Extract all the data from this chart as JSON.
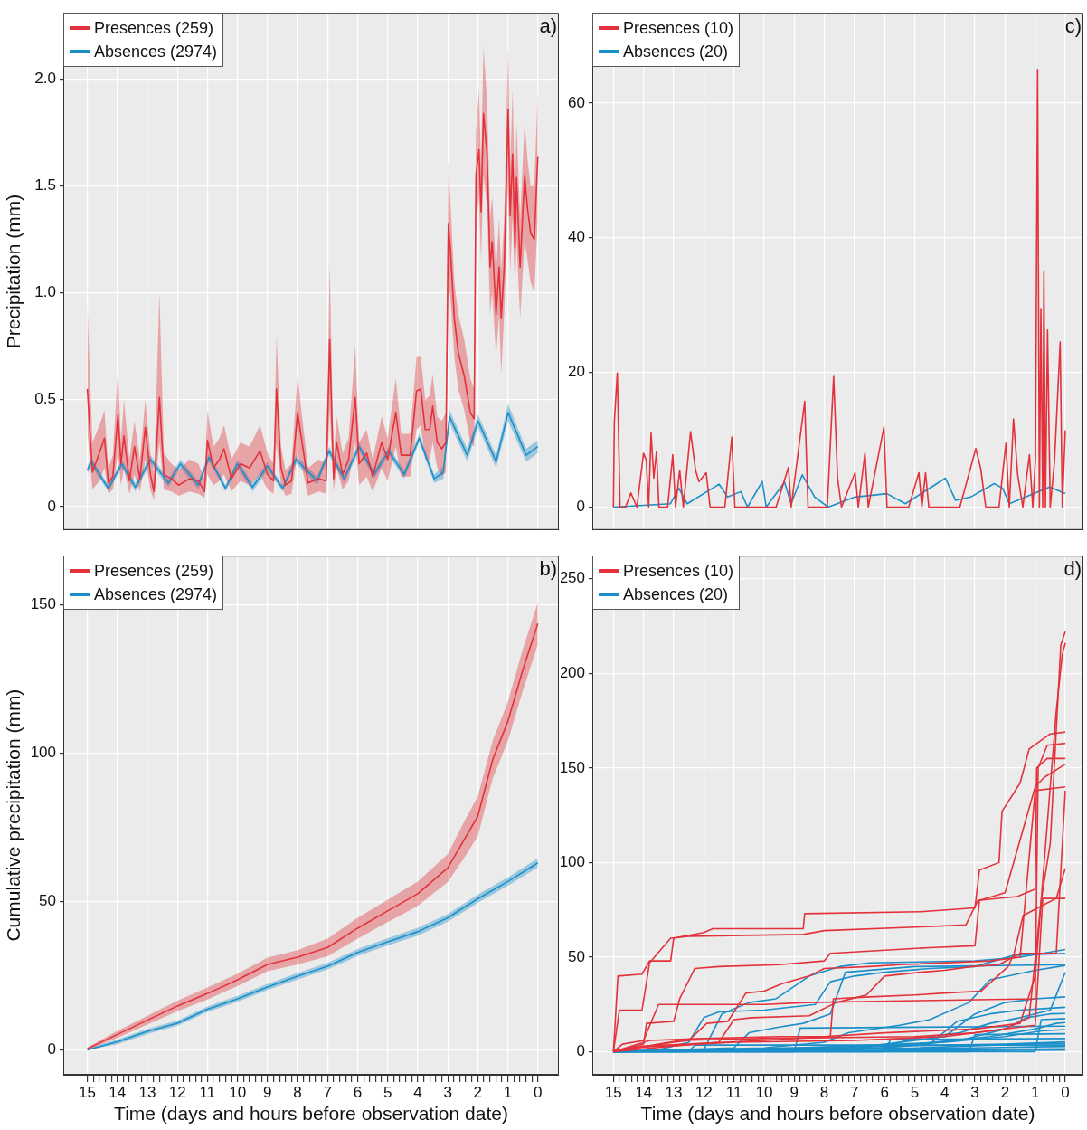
{
  "chart_data": [
    {
      "type": "line",
      "ylabel": "Precipitation (mm)",
      "annotations": [
        "a)"
      ],
      "legend": "top left",
      "grid": true,
      "tick_labels": "y",
      "xlim": [
        15.8,
        -0.7
      ],
      "xticks": [
        15,
        14,
        13,
        12,
        11,
        10,
        9,
        8,
        7,
        6,
        5,
        4,
        3,
        2,
        1,
        0
      ],
      "ylim": [
        -0.11,
        2.31
      ],
      "yticks": [
        0,
        0.5,
        {
          "value": 1,
          "label": "1.0"
        },
        1.5,
        {
          "value": 2,
          "label": "2.0"
        }
      ],
      "series": [
        {
          "name": "Presences (259)",
          "color": "#e3323b",
          "x": [
            15,
            14.83,
            14.6,
            14.43,
            14.3,
            14.15,
            13.98,
            13.88,
            13.78,
            13.6,
            13.43,
            13.25,
            13.07,
            12.9,
            12.78,
            12.6,
            12.45,
            12.2,
            11.96,
            11.6,
            11.3,
            11.1,
            11.0,
            10.8,
            10.6,
            10.45,
            10.2,
            9.9,
            9.6,
            9.25,
            9.0,
            8.8,
            8.7,
            8.55,
            8.4,
            8.2,
            8.0,
            7.85,
            7.65,
            7.3,
            7.05,
            6.93,
            6.8,
            6.7,
            6.5,
            6.3,
            6.08,
            5.95,
            5.7,
            5.5,
            5.2,
            5.0,
            4.73,
            4.55,
            4.25,
            4.04,
            3.9,
            3.75,
            3.6,
            3.5,
            3.35,
            3.2,
            3.06,
            2.98,
            2.92,
            2.78,
            2.65,
            2.45,
            2.25,
            2.12,
            2.06,
            1.96,
            1.89,
            1.81,
            1.69,
            1.59,
            1.52,
            1.39,
            1.29,
            1.22,
            1.12,
            0.99,
            0.92,
            0.84,
            0.76,
            0.71,
            0.59,
            0.44,
            0.34,
            0.24,
            0.12,
            0
          ],
          "values": [
            0.55,
            0.16,
            0.25,
            0.32,
            0.11,
            0.14,
            0.43,
            0.2,
            0.33,
            0.12,
            0.28,
            0.13,
            0.37,
            0.15,
            0.07,
            0.51,
            0.15,
            0.13,
            0.1,
            0.13,
            0.12,
            0.07,
            0.31,
            0.18,
            0.22,
            0.27,
            0.13,
            0.2,
            0.18,
            0.26,
            0.15,
            0.12,
            0.55,
            0.18,
            0.1,
            0.12,
            0.44,
            0.3,
            0.11,
            0.13,
            0.12,
            0.78,
            0.13,
            0.3,
            0.15,
            0.22,
            0.51,
            0.2,
            0.25,
            0.14,
            0.3,
            0.22,
            0.44,
            0.24,
            0.24,
            0.54,
            0.55,
            0.36,
            0.36,
            0.47,
            0.3,
            0.27,
            0.3,
            1.32,
            1.22,
            0.88,
            0.72,
            0.61,
            0.44,
            0.41,
            1.55,
            1.67,
            1.38,
            1.84,
            1.65,
            1.12,
            1.24,
            0.9,
            1.12,
            0.88,
            1.12,
            1.86,
            1.36,
            1.65,
            1.21,
            1.54,
            1.12,
            1.55,
            1.39,
            1.28,
            1.25,
            1.64
          ],
          "lower": [
            0.35,
            0.08,
            0.12,
            0.18,
            0.06,
            0.08,
            0.25,
            0.1,
            0.18,
            0.06,
            0.15,
            0.07,
            0.22,
            0.08,
            0.03,
            0.3,
            0.08,
            0.07,
            0.05,
            0.07,
            0.06,
            0.04,
            0.15,
            0.1,
            0.12,
            0.15,
            0.07,
            0.12,
            0.1,
            0.15,
            0.08,
            0.06,
            0.3,
            0.1,
            0.05,
            0.06,
            0.25,
            0.18,
            0.05,
            0.07,
            0.06,
            0.45,
            0.07,
            0.18,
            0.08,
            0.12,
            0.3,
            0.1,
            0.14,
            0.07,
            0.18,
            0.12,
            0.28,
            0.14,
            0.14,
            0.36,
            0.38,
            0.22,
            0.22,
            0.3,
            0.18,
            0.14,
            0.16,
            0.98,
            1.0,
            0.7,
            0.55,
            0.45,
            0.3,
            0.28,
            1.3,
            1.45,
            1.15,
            1.55,
            1.4,
            0.9,
            1.0,
            0.7,
            0.9,
            0.62,
            0.9,
            1.5,
            1.1,
            1.35,
            1.0,
            1.25,
            0.88,
            1.25,
            1.15,
            1.05,
            1.0,
            1.35
          ],
          "upper": [
            0.95,
            0.3,
            0.38,
            0.45,
            0.18,
            0.24,
            0.65,
            0.3,
            0.5,
            0.22,
            0.4,
            0.22,
            0.5,
            0.25,
            0.15,
            1.0,
            0.25,
            0.2,
            0.17,
            0.22,
            0.2,
            0.13,
            0.45,
            0.28,
            0.32,
            0.38,
            0.22,
            0.3,
            0.28,
            0.38,
            0.25,
            0.2,
            0.8,
            0.28,
            0.17,
            0.2,
            0.62,
            0.42,
            0.18,
            0.22,
            0.2,
            1.13,
            0.22,
            0.42,
            0.25,
            0.32,
            0.75,
            0.3,
            0.36,
            0.22,
            0.42,
            0.32,
            0.6,
            0.34,
            0.34,
            0.7,
            0.7,
            0.5,
            0.52,
            0.62,
            0.42,
            0.4,
            0.44,
            1.62,
            1.45,
            1.05,
            0.9,
            0.78,
            0.6,
            0.55,
            1.75,
            1.95,
            1.6,
            2.15,
            1.9,
            1.35,
            1.45,
            1.1,
            1.35,
            1.1,
            1.35,
            2.15,
            1.6,
            1.95,
            1.45,
            1.8,
            1.35,
            1.8,
            1.62,
            1.5,
            1.5,
            1.95
          ]
        },
        {
          "name": "Absences (2974)",
          "color": "#1b8fca",
          "x": [
            15,
            14.87,
            14.3,
            13.85,
            13.4,
            12.9,
            12.3,
            11.9,
            11.3,
            10.95,
            10.4,
            10.0,
            9.5,
            9.0,
            8.5,
            8.05,
            7.35,
            6.95,
            6.45,
            5.95,
            5.45,
            4.97,
            4.45,
            3.95,
            3.45,
            3.15,
            2.94,
            2.35,
            1.99,
            1.39,
            0.99,
            0.39,
            0
          ],
          "values": [
            0.17,
            0.21,
            0.085,
            0.2,
            0.09,
            0.22,
            0.11,
            0.2,
            0.1,
            0.23,
            0.085,
            0.2,
            0.09,
            0.19,
            0.085,
            0.22,
            0.12,
            0.26,
            0.13,
            0.28,
            0.15,
            0.26,
            0.15,
            0.32,
            0.13,
            0.16,
            0.42,
            0.24,
            0.4,
            0.21,
            0.44,
            0.24,
            0.28
          ],
          "lower": [
            0.15,
            0.19,
            0.07,
            0.18,
            0.07,
            0.2,
            0.09,
            0.18,
            0.08,
            0.21,
            0.07,
            0.18,
            0.07,
            0.17,
            0.07,
            0.2,
            0.1,
            0.24,
            0.11,
            0.26,
            0.13,
            0.24,
            0.13,
            0.3,
            0.11,
            0.13,
            0.39,
            0.21,
            0.37,
            0.18,
            0.4,
            0.21,
            0.25
          ],
          "upper": [
            0.19,
            0.23,
            0.1,
            0.22,
            0.11,
            0.24,
            0.13,
            0.22,
            0.12,
            0.25,
            0.1,
            0.22,
            0.11,
            0.21,
            0.1,
            0.24,
            0.14,
            0.28,
            0.15,
            0.3,
            0.17,
            0.28,
            0.17,
            0.34,
            0.15,
            0.19,
            0.45,
            0.27,
            0.43,
            0.24,
            0.48,
            0.27,
            0.31
          ]
        }
      ]
    },
    {
      "type": "line",
      "annotations": [
        "c)"
      ],
      "legend": "top left",
      "grid": true,
      "tick_labels": "y",
      "xlim": [
        15.7,
        -0.6
      ],
      "xticks": [
        15,
        14,
        13,
        12,
        11,
        10,
        9,
        8,
        7,
        6,
        5,
        4,
        3,
        2,
        1,
        0
      ],
      "ylim": [
        -3.4,
        73.4
      ],
      "yticks": [
        0,
        20,
        40,
        60
      ],
      "series": [
        {
          "name": "Presences (10)",
          "color": "#e3323b",
          "x": [
            15,
            14.97,
            14.87,
            14.78,
            14.6,
            14.42,
            14.22,
            14.0,
            13.91,
            13.83,
            13.75,
            13.66,
            13.57,
            13.49,
            13.2,
            13.03,
            12.94,
            12.8,
            12.68,
            12.44,
            12.27,
            12.16,
            11.92,
            11.79,
            11.3,
            11.07,
            10.97,
            9.6,
            9.19,
            9.1,
            8.65,
            8.54,
            7.9,
            7.69,
            7.56,
            7.43,
            6.98,
            6.87,
            6.65,
            6.54,
            6.02,
            5.92,
            5.2,
            4.86,
            4.76,
            4.64,
            4.53,
            3.5,
            2.97,
            2.81,
            2.64,
            2.2,
            1.97,
            1.86,
            1.72,
            1.58,
            1.41,
            1.19,
            1.08,
            0.99,
            0.92,
            0.86,
            0.81,
            0.75,
            0.71,
            0.66,
            0.59,
            0.5,
            0.36,
            0.17,
            0.1,
            0
          ],
          "values": [
            0,
            12.6,
            19.9,
            0,
            0,
            2.1,
            0,
            8,
            7,
            0,
            11,
            4.3,
            8.3,
            0,
            0,
            7.8,
            0,
            5.5,
            0,
            11.2,
            5.4,
            3.8,
            5.1,
            0,
            0,
            10.4,
            0,
            0,
            5.9,
            0,
            15.7,
            0,
            0,
            19.4,
            4.3,
            0,
            5.1,
            0,
            8,
            0,
            11.9,
            0,
            0,
            5.1,
            0,
            5.1,
            0,
            0,
            8.7,
            5.8,
            0,
            0,
            9.5,
            0,
            13.1,
            4.8,
            0,
            7.8,
            0,
            7.2,
            65,
            0,
            29.5,
            0,
            35.1,
            0,
            26.3,
            0,
            6.7,
            24.5,
            0,
            11.4
          ]
        },
        {
          "name": "Absences (20)",
          "color": "#1b8fca",
          "x": [
            15,
            13.11,
            12.83,
            12.55,
            11.49,
            11.21,
            10.77,
            10.55,
            10.06,
            9.93,
            9.32,
            9.1,
            8.73,
            8.32,
            7.87,
            6.98,
            5.92,
            5.31,
            3.98,
            3.64,
            3.14,
            2.36,
            2.08,
            1.86,
            0.52,
            0
          ],
          "values": [
            0,
            0.5,
            2.8,
            0.5,
            3.4,
            1.5,
            2.3,
            0,
            3.8,
            0,
            3.7,
            0.5,
            4.8,
            1.5,
            0,
            1.5,
            2,
            0.5,
            4.3,
            1,
            1.5,
            3.5,
            2.8,
            0.5,
            3,
            2
          ]
        }
      ]
    },
    {
      "type": "line",
      "ylabel": "Cumulative precipitation (mm)",
      "xlabel": "Time (days and hours before observation date)",
      "annotations": [
        "b)"
      ],
      "legend": "top left",
      "grid": true,
      "xlim": [
        15.8,
        -0.7
      ],
      "xticks": [
        15,
        {
          "value": 14.8,
          "label": null
        },
        {
          "value": 14.6,
          "label": null
        },
        {
          "value": 14.4,
          "label": null
        },
        {
          "value": 14.2,
          "label": null
        },
        14,
        {
          "value": 13.8,
          "label": null
        },
        {
          "value": 13.6,
          "label": null
        },
        {
          "value": 13.4,
          "label": null
        },
        {
          "value": 13.2,
          "label": null
        },
        13,
        {
          "value": 12.8,
          "label": null
        },
        {
          "value": 12.6,
          "label": null
        },
        {
          "value": 12.4,
          "label": null
        },
        {
          "value": 12.2,
          "label": null
        },
        12,
        {
          "value": 11.8,
          "label": null
        },
        {
          "value": 11.6,
          "label": null
        },
        {
          "value": 11.4,
          "label": null
        },
        {
          "value": 11.2,
          "label": null
        },
        11,
        {
          "value": 10.8,
          "label": null
        },
        {
          "value": 10.6,
          "label": null
        },
        {
          "value": 10.4,
          "label": null
        },
        {
          "value": 10.2,
          "label": null
        },
        10,
        {
          "value": 9.8,
          "label": null
        },
        {
          "value": 9.6,
          "label": null
        },
        {
          "value": 9.4,
          "label": null
        },
        {
          "value": 9.2,
          "label": null
        },
        9,
        {
          "value": 8.8,
          "label": null
        },
        {
          "value": 8.6,
          "label": null
        },
        {
          "value": 8.4,
          "label": null
        },
        {
          "value": 8.2,
          "label": null
        },
        8,
        {
          "value": 7.8,
          "label": null
        },
        {
          "value": 7.6,
          "label": null
        },
        {
          "value": 7.4,
          "label": null
        },
        {
          "value": 7.2,
          "label": null
        },
        7,
        {
          "value": 6.8,
          "label": null
        },
        {
          "value": 6.6,
          "label": null
        },
        {
          "value": 6.4,
          "label": null
        },
        {
          "value": 6.2,
          "label": null
        },
        6,
        {
          "value": 5.8,
          "label": null
        },
        {
          "value": 5.6,
          "label": null
        },
        {
          "value": 5.4,
          "label": null
        },
        {
          "value": 5.2,
          "label": null
        },
        5,
        {
          "value": 4.8,
          "label": null
        },
        {
          "value": 4.6,
          "label": null
        },
        {
          "value": 4.4,
          "label": null
        },
        {
          "value": 4.2,
          "label": null
        },
        4,
        {
          "value": 3.8,
          "label": null
        },
        {
          "value": 3.6,
          "label": null
        },
        {
          "value": 3.4,
          "label": null
        },
        {
          "value": 3.2,
          "label": null
        },
        3,
        {
          "value": 2.8,
          "label": null
        },
        {
          "value": 2.6,
          "label": null
        },
        {
          "value": 2.4,
          "label": null
        },
        {
          "value": 2.2,
          "label": null
        },
        2,
        {
          "value": 1.8,
          "label": null
        },
        {
          "value": 1.6,
          "label": null
        },
        {
          "value": 1.4,
          "label": null
        },
        {
          "value": 1.2,
          "label": null
        },
        1,
        {
          "value": 0.8,
          "label": null
        },
        {
          "value": 0.6,
          "label": null
        },
        {
          "value": 0.4,
          "label": null
        },
        {
          "value": 0.2,
          "label": null
        },
        0
      ],
      "ylim": [
        -8.4,
        166.5
      ],
      "yticks": [
        0,
        50,
        100,
        150
      ],
      "series": [
        {
          "name": "Presences (259)",
          "color": "#e3323b",
          "x": [
            15,
            14,
            13,
            12,
            11,
            10,
            9,
            8,
            7,
            6,
            5,
            4,
            3,
            2.5,
            2,
            1.5,
            1,
            0.5,
            0
          ],
          "values": [
            0.4,
            5.2,
            10,
            14.8,
            19,
            23.6,
            28.8,
            31.2,
            34.5,
            41,
            46.8,
            52.6,
            61.3,
            70,
            78.7,
            97.9,
            110.6,
            128,
            143.6
          ],
          "lower": [
            0,
            4,
            8.5,
            13,
            17,
            21.5,
            26.5,
            28.8,
            31.5,
            37.5,
            43,
            48.5,
            56.5,
            64,
            72,
            91.5,
            104,
            121,
            136.5
          ],
          "upper": [
            0.8,
            6.4,
            11.5,
            16.6,
            21,
            25.7,
            31.1,
            33.6,
            37.5,
            44.5,
            50.6,
            56.7,
            66,
            76,
            85.4,
            104.3,
            117.2,
            135,
            150.7
          ]
        },
        {
          "name": "Absences (2974)",
          "color": "#1b8fca",
          "x": [
            15,
            14,
            13,
            12,
            11,
            10,
            9,
            8,
            7,
            6,
            5,
            4,
            3,
            2,
            1,
            0
          ],
          "values": [
            0,
            2.7,
            6.2,
            9,
            13.7,
            17.2,
            21.2,
            24.8,
            28.2,
            32.8,
            36.4,
            39.8,
            44.5,
            50.9,
            56.7,
            63
          ],
          "lower": [
            0,
            1.9,
            5.3,
            8.1,
            12.8,
            16.2,
            20.2,
            23.7,
            27.1,
            31.6,
            35.2,
            38.5,
            43.2,
            49.5,
            55.3,
            61.5
          ],
          "upper": [
            0.5,
            3.5,
            7.1,
            9.9,
            14.6,
            18.2,
            22.2,
            25.9,
            29.3,
            34,
            37.6,
            41.1,
            45.8,
            52.3,
            58.1,
            64.5
          ]
        }
      ]
    },
    {
      "type": "line",
      "xlabel": "Time (days and hours before observation date)",
      "annotations": [
        "d)"
      ],
      "legend": "top left",
      "grid": true,
      "xlim": [
        15.7,
        -0.6
      ],
      "xticks": [
        15,
        {
          "value": 14.8,
          "label": null
        },
        {
          "value": 14.6,
          "label": null
        },
        {
          "value": 14.4,
          "label": null
        },
        {
          "value": 14.2,
          "label": null
        },
        14,
        {
          "value": 13.8,
          "label": null
        },
        {
          "value": 13.6,
          "label": null
        },
        {
          "value": 13.4,
          "label": null
        },
        {
          "value": 13.2,
          "label": null
        },
        13,
        {
          "value": 12.8,
          "label": null
        },
        {
          "value": 12.6,
          "label": null
        },
        {
          "value": 12.4,
          "label": null
        },
        {
          "value": 12.2,
          "label": null
        },
        12,
        {
          "value": 11.8,
          "label": null
        },
        {
          "value": 11.6,
          "label": null
        },
        {
          "value": 11.4,
          "label": null
        },
        {
          "value": 11.2,
          "label": null
        },
        11,
        {
          "value": 10.8,
          "label": null
        },
        {
          "value": 10.6,
          "label": null
        },
        {
          "value": 10.4,
          "label": null
        },
        {
          "value": 10.2,
          "label": null
        },
        10,
        {
          "value": 9.8,
          "label": null
        },
        {
          "value": 9.6,
          "label": null
        },
        {
          "value": 9.4,
          "label": null
        },
        {
          "value": 9.2,
          "label": null
        },
        9,
        {
          "value": 8.8,
          "label": null
        },
        {
          "value": 8.6,
          "label": null
        },
        {
          "value": 8.4,
          "label": null
        },
        {
          "value": 8.2,
          "label": null
        },
        8,
        {
          "value": 7.8,
          "label": null
        },
        {
          "value": 7.6,
          "label": null
        },
        {
          "value": 7.4,
          "label": null
        },
        {
          "value": 7.2,
          "label": null
        },
        7,
        {
          "value": 6.8,
          "label": null
        },
        {
          "value": 6.6,
          "label": null
        },
        {
          "value": 6.4,
          "label": null
        },
        {
          "value": 6.2,
          "label": null
        },
        6,
        {
          "value": 5.8,
          "label": null
        },
        {
          "value": 5.6,
          "label": null
        },
        {
          "value": 5.4,
          "label": null
        },
        {
          "value": 5.2,
          "label": null
        },
        5,
        {
          "value": 4.8,
          "label": null
        },
        {
          "value": 4.6,
          "label": null
        },
        {
          "value": 4.4,
          "label": null
        },
        {
          "value": 4.2,
          "label": null
        },
        4,
        {
          "value": 3.8,
          "label": null
        },
        {
          "value": 3.6,
          "label": null
        },
        {
          "value": 3.4,
          "label": null
        },
        {
          "value": 3.2,
          "label": null
        },
        3,
        {
          "value": 2.8,
          "label": null
        },
        {
          "value": 2.6,
          "label": null
        },
        {
          "value": 2.4,
          "label": null
        },
        {
          "value": 2.2,
          "label": null
        },
        2,
        {
          "value": 1.8,
          "label": null
        },
        {
          "value": 1.6,
          "label": null
        },
        {
          "value": 1.4,
          "label": null
        },
        {
          "value": 1.2,
          "label": null
        },
        1,
        {
          "value": 0.8,
          "label": null
        },
        {
          "value": 0.6,
          "label": null
        },
        {
          "value": 0.4,
          "label": null
        },
        {
          "value": 0.2,
          "label": null
        },
        0
      ],
      "ylim": [
        -12.2,
        262.2
      ],
      "yticks": [
        0,
        50,
        100,
        150,
        200,
        250
      ],
      "series": [
        {
          "name": "Presences (10)",
          "color": "#e3323b",
          "x": [
            15,
            14.85,
            14.05,
            13.8,
            13.1,
            13.0,
            12.0,
            11.7,
            8.7,
            8.65,
            4.8,
            3.0,
            2.85,
            2.2,
            2.1,
            1.5,
            1.2,
            0.5,
            0
          ],
          "values": [
            0,
            40,
            41,
            48,
            48,
            60,
            63,
            65,
            65,
            73,
            74,
            76,
            96,
            100,
            127,
            142,
            160,
            168,
            169
          ]
        },
        {
          "color": "#e3323b",
          "x": [
            15,
            14.8,
            14.05,
            13.8,
            13.1,
            12.5,
            8.7,
            8.0,
            4.8,
            3.3,
            2.9,
            1.6,
            1.0,
            0.95,
            0.6,
            0
          ],
          "values": [
            0,
            22,
            22,
            47,
            60,
            61,
            62,
            64,
            66,
            67,
            80,
            82,
            86,
            150,
            155,
            155
          ]
        },
        {
          "color": "#e3323b",
          "x": [
            15,
            14.7,
            14.0,
            13.5,
            10,
            8.6,
            4.9,
            1.0,
            0.9,
            0.6,
            0
          ],
          "values": [
            0,
            4,
            6,
            25,
            25,
            26,
            27,
            28,
            150,
            162,
            163
          ]
        },
        {
          "color": "#e3323b",
          "x": [
            15,
            14.0,
            13.9,
            13.0,
            12.8,
            12.3,
            11.5,
            9.5,
            8.0,
            7.8,
            4.5,
            3.0,
            2.85,
            2.0,
            1.0,
            0.7,
            0
          ],
          "values": [
            0,
            4,
            15,
            16,
            28,
            44,
            45,
            46,
            48,
            52,
            55,
            56,
            80,
            84,
            140,
            145,
            152
          ]
        },
        {
          "color": "#e3323b",
          "x": [
            15,
            13.0,
            12.5,
            11.9,
            11.2,
            10.6,
            10.0,
            9.4,
            8.5,
            8.0,
            6.5,
            5.5,
            2.5,
            1.5,
            1.0,
            0
          ],
          "values": [
            0,
            5,
            6,
            15,
            16,
            31,
            32,
            36,
            40,
            44,
            45,
            46,
            48,
            50,
            138,
            140
          ]
        },
        {
          "color": "#e3323b",
          "x": [
            15,
            13.8,
            12.0,
            9.5,
            7.8,
            7.7,
            6.5,
            5.0,
            4.0,
            2.8,
            1.9,
            1.7,
            1.4,
            0.8,
            0.3,
            0
          ],
          "values": [
            0,
            6,
            7,
            8,
            8,
            28,
            29,
            30,
            31,
            32,
            45,
            52,
            72,
            77,
            81,
            97
          ]
        },
        {
          "color": "#e3323b",
          "x": [
            15,
            13.0,
            11.5,
            11.0,
            10.4,
            8.5,
            7.6,
            6.6,
            6.0,
            4.8,
            4.0,
            3.1,
            2.2,
            1.5,
            0.3,
            0
          ],
          "values": [
            0,
            3,
            5,
            17,
            18,
            19,
            26,
            30,
            40,
            42,
            43,
            45,
            46,
            52,
            52,
            138
          ]
        },
        {
          "color": "#e3323b",
          "x": [
            15,
            12.8,
            10,
            5,
            3.0,
            1.0,
            0.75,
            0
          ],
          "values": [
            0,
            6,
            7,
            8,
            10,
            14,
            81,
            81
          ]
        },
        {
          "color": "#e3323b",
          "x": [
            15,
            14.5,
            11.0,
            7.0,
            4.0,
            2.0,
            1.2,
            0.8,
            0.5,
            0.3,
            0.15,
            0
          ],
          "values": [
            0,
            2,
            5,
            6,
            8,
            12,
            18,
            80,
            110,
            170,
            215,
            222
          ]
        },
        {
          "color": "#e3323b",
          "x": [
            15,
            14.0,
            10.0,
            6.0,
            3.0,
            1.5,
            1.0,
            0.6,
            0.3,
            0.1,
            0
          ],
          "values": [
            0,
            3,
            6,
            10,
            12,
            15,
            40,
            120,
            180,
            210,
            216
          ]
        },
        {
          "name": "Absences (20)",
          "color": "#1b8fca",
          "x": [
            15,
            12,
            11.4,
            10.5,
            9.6,
            8.5,
            7.5,
            6.5,
            3.0,
            1.5,
            0
          ],
          "values": [
            0,
            1,
            20,
            26,
            28,
            40,
            45,
            47,
            48,
            50,
            54
          ]
        },
        {
          "color": "#1b8fca",
          "x": [
            15,
            13.5,
            12.5,
            12.0,
            11.5,
            10.0,
            8.3,
            7.8,
            7.0,
            6.0,
            4.5,
            3.0,
            1.7,
            0
          ],
          "values": [
            0,
            1,
            5,
            18,
            21,
            22,
            25,
            37,
            40,
            42,
            44,
            45,
            51,
            52
          ]
        },
        {
          "color": "#1b8fca",
          "x": [
            15,
            11.0,
            10.5,
            9.5,
            8.7,
            7.8,
            7.3,
            5.0,
            0
          ],
          "values": [
            0,
            2,
            10,
            13,
            15,
            20,
            42,
            45,
            46
          ]
        },
        {
          "color": "#1b8fca",
          "x": [
            15,
            10.0,
            8.0,
            7.2,
            5.5,
            4.5,
            3.2,
            2.5,
            1.0,
            0
          ],
          "values": [
            0,
            2,
            5,
            10,
            14,
            17,
            26,
            38,
            43,
            45.6
          ]
        },
        {
          "color": "#1b8fca",
          "x": [
            15,
            8.0,
            6.0,
            5.0,
            3.5,
            2.5,
            1.5,
            0.5,
            0
          ],
          "values": [
            0,
            1,
            3,
            7,
            10,
            15,
            18,
            22,
            42
          ]
        },
        {
          "color": "#1b8fca",
          "x": [
            15,
            9,
            6.5,
            4.0,
            3.0,
            2.0,
            1.0,
            0
          ],
          "values": [
            0,
            1,
            3,
            8,
            20,
            26,
            28,
            29
          ]
        },
        {
          "color": "#1b8fca",
          "x": [
            15,
            7,
            4.5,
            3.6,
            2.5,
            1.5,
            0.5,
            0
          ],
          "values": [
            0,
            1,
            4,
            16,
            20,
            22,
            23,
            23.5
          ]
        },
        {
          "color": "#1b8fca",
          "x": [
            15,
            6,
            3.5,
            2.0,
            1.3,
            0.5,
            0
          ],
          "values": [
            0,
            2,
            6,
            12,
            18,
            20,
            20.2
          ]
        },
        {
          "color": "#1b8fca",
          "x": [
            15,
            8,
            5,
            2.5,
            1.0,
            0.3,
            0
          ],
          "values": [
            0,
            2,
            4,
            8,
            12,
            15,
            15.4
          ]
        },
        {
          "color": "#1b8fca",
          "x": [
            15,
            9,
            4,
            2,
            0.8,
            0
          ],
          "values": [
            0,
            2,
            5,
            8,
            11,
            11.7
          ]
        },
        {
          "color": "#1b8fca",
          "x": [
            15,
            12,
            6,
            2,
            0
          ],
          "values": [
            0,
            1,
            3,
            4,
            5.2
          ]
        },
        {
          "color": "#1b8fca",
          "x": [
            15,
            10,
            5,
            1.5,
            0
          ],
          "values": [
            0,
            1,
            2,
            4,
            4.4
          ]
        },
        {
          "color": "#1b8fca",
          "x": [
            15,
            10,
            3,
            0
          ],
          "values": [
            0,
            1,
            2,
            2.8
          ]
        },
        {
          "color": "#1b8fca",
          "x": [
            15,
            8,
            0
          ],
          "values": [
            0,
            0.5,
            1.5
          ]
        },
        {
          "color": "#1b8fca",
          "x": [
            15,
            0
          ],
          "values": [
            0,
            0.8
          ]
        },
        {
          "color": "#1b8fca",
          "x": [
            15,
            12.5,
            12.3,
            0
          ],
          "values": [
            0,
            0,
            3.5,
            3.5
          ]
        },
        {
          "color": "#1b8fca",
          "x": [
            15,
            6,
            5.8,
            0
          ],
          "values": [
            0,
            0,
            6.5,
            7
          ]
        },
        {
          "color": "#1b8fca",
          "x": [
            15,
            3.2,
            3.0,
            0
          ],
          "values": [
            0,
            0,
            9,
            9.5
          ]
        },
        {
          "color": "#1b8fca",
          "x": [
            15,
            9,
            8.8,
            0
          ],
          "values": [
            0,
            0,
            12.5,
            13.5
          ]
        },
        {
          "color": "#1b8fca",
          "x": [
            15,
            1.0,
            0.8,
            0
          ],
          "values": [
            0,
            0,
            17,
            17.5
          ]
        }
      ]
    }
  ]
}
